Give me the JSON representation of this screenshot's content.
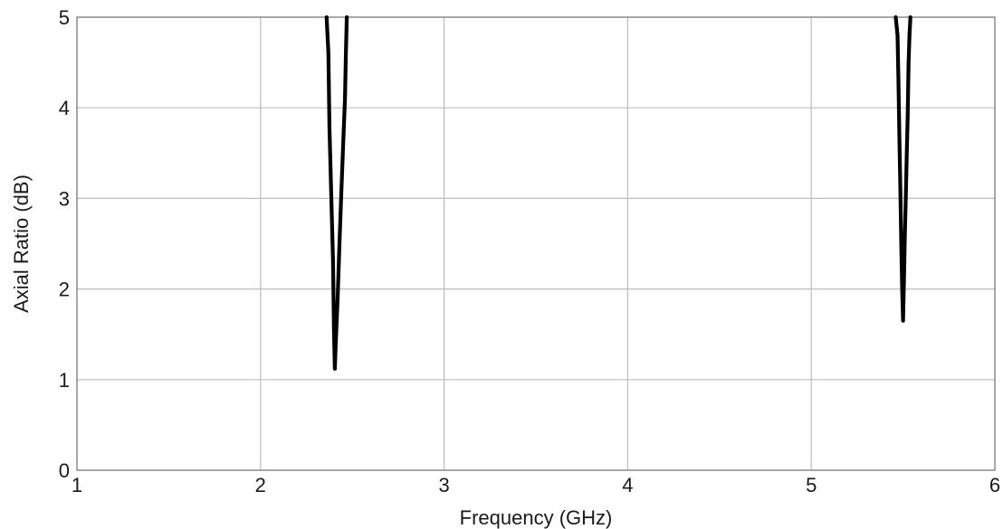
{
  "chart_data": {
    "type": "line",
    "xlabel": "Frequency (GHz)",
    "ylabel": "Axial Ratio (dB)",
    "xlim": [
      1,
      6
    ],
    "ylim": [
      0,
      5
    ],
    "x_ticks": [
      1,
      2,
      3,
      4,
      5,
      6
    ],
    "y_ticks": [
      0,
      1,
      2,
      3,
      4,
      5
    ],
    "x_tick_labels": [
      "1",
      "2",
      "3",
      "4",
      "5",
      "6"
    ],
    "y_tick_labels": [
      "0",
      "1",
      "2",
      "3",
      "4",
      "5"
    ],
    "grid": true,
    "legend": "none",
    "line_color": "#000000",
    "grid_color": "#bdbdbd",
    "series": [
      {
        "points": [
          [
            2.36,
            5.0
          ],
          [
            2.37,
            4.6
          ],
          [
            2.375,
            3.8
          ],
          [
            2.385,
            3.05
          ],
          [
            2.395,
            2.3
          ],
          [
            2.4,
            1.55
          ],
          [
            2.405,
            1.12
          ],
          [
            2.41,
            1.4
          ],
          [
            2.42,
            1.9
          ],
          [
            2.43,
            2.5
          ],
          [
            2.44,
            3.05
          ],
          [
            2.45,
            3.6
          ],
          [
            2.46,
            4.1
          ],
          [
            2.465,
            4.6
          ],
          [
            2.47,
            5.0
          ]
        ]
      },
      {
        "points": [
          [
            5.46,
            5.0
          ],
          [
            5.47,
            4.8
          ],
          [
            5.475,
            4.3
          ],
          [
            5.48,
            3.7
          ],
          [
            5.485,
            3.1
          ],
          [
            5.49,
            2.5
          ],
          [
            5.495,
            2.0
          ],
          [
            5.5,
            1.65
          ],
          [
            5.505,
            2.1
          ],
          [
            5.51,
            2.6
          ],
          [
            5.515,
            3.0
          ],
          [
            5.52,
            3.5
          ],
          [
            5.525,
            3.9
          ],
          [
            5.53,
            4.5
          ],
          [
            5.535,
            4.8
          ],
          [
            5.54,
            5.0
          ]
        ]
      }
    ]
  }
}
